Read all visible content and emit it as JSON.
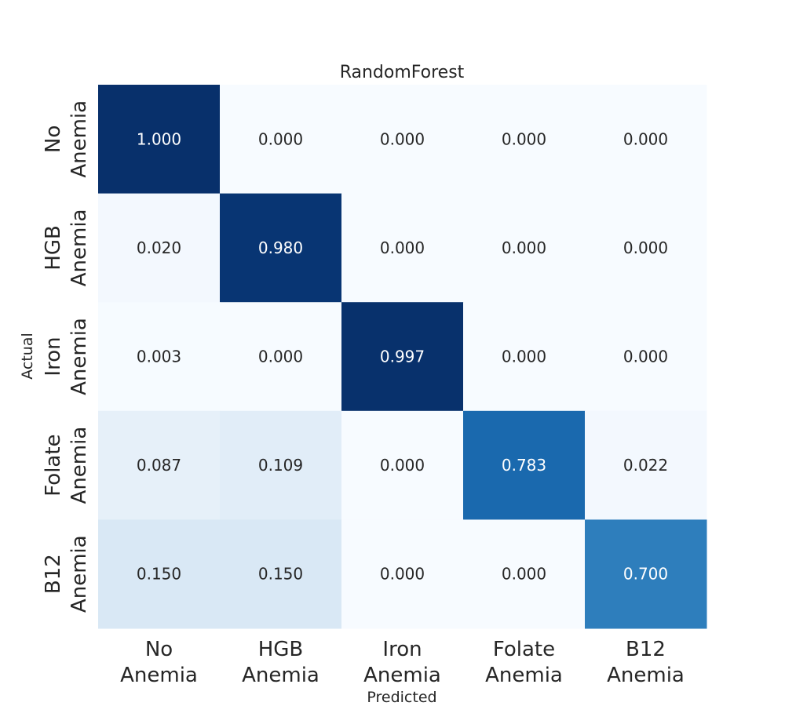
{
  "chart_data": {
    "type": "heatmap",
    "title": "RandomForest",
    "xlabel": "Predicted",
    "ylabel": "Actual",
    "x_categories": [
      [
        "No",
        "Anemia"
      ],
      [
        "HGB",
        "Anemia"
      ],
      [
        "Iron",
        "Anemia"
      ],
      [
        "Folate",
        "Anemia"
      ],
      [
        "B12",
        "Anemia"
      ]
    ],
    "y_categories": [
      [
        "No",
        "Anemia"
      ],
      [
        "HGB",
        "Anemia"
      ],
      [
        "Iron",
        "Anemia"
      ],
      [
        "Folate",
        "Anemia"
      ],
      [
        "B12",
        "Anemia"
      ]
    ],
    "values": [
      [
        1.0,
        0.0,
        0.0,
        0.0,
        0.0
      ],
      [
        0.02,
        0.98,
        0.0,
        0.0,
        0.0
      ],
      [
        0.003,
        0.0,
        0.997,
        0.0,
        0.0
      ],
      [
        0.087,
        0.109,
        0.0,
        0.783,
        0.022
      ],
      [
        0.15,
        0.15,
        0.0,
        0.0,
        0.7
      ]
    ],
    "value_range": [
      0,
      1
    ],
    "colormap": "Blues",
    "colorbar": false,
    "grid": false
  }
}
